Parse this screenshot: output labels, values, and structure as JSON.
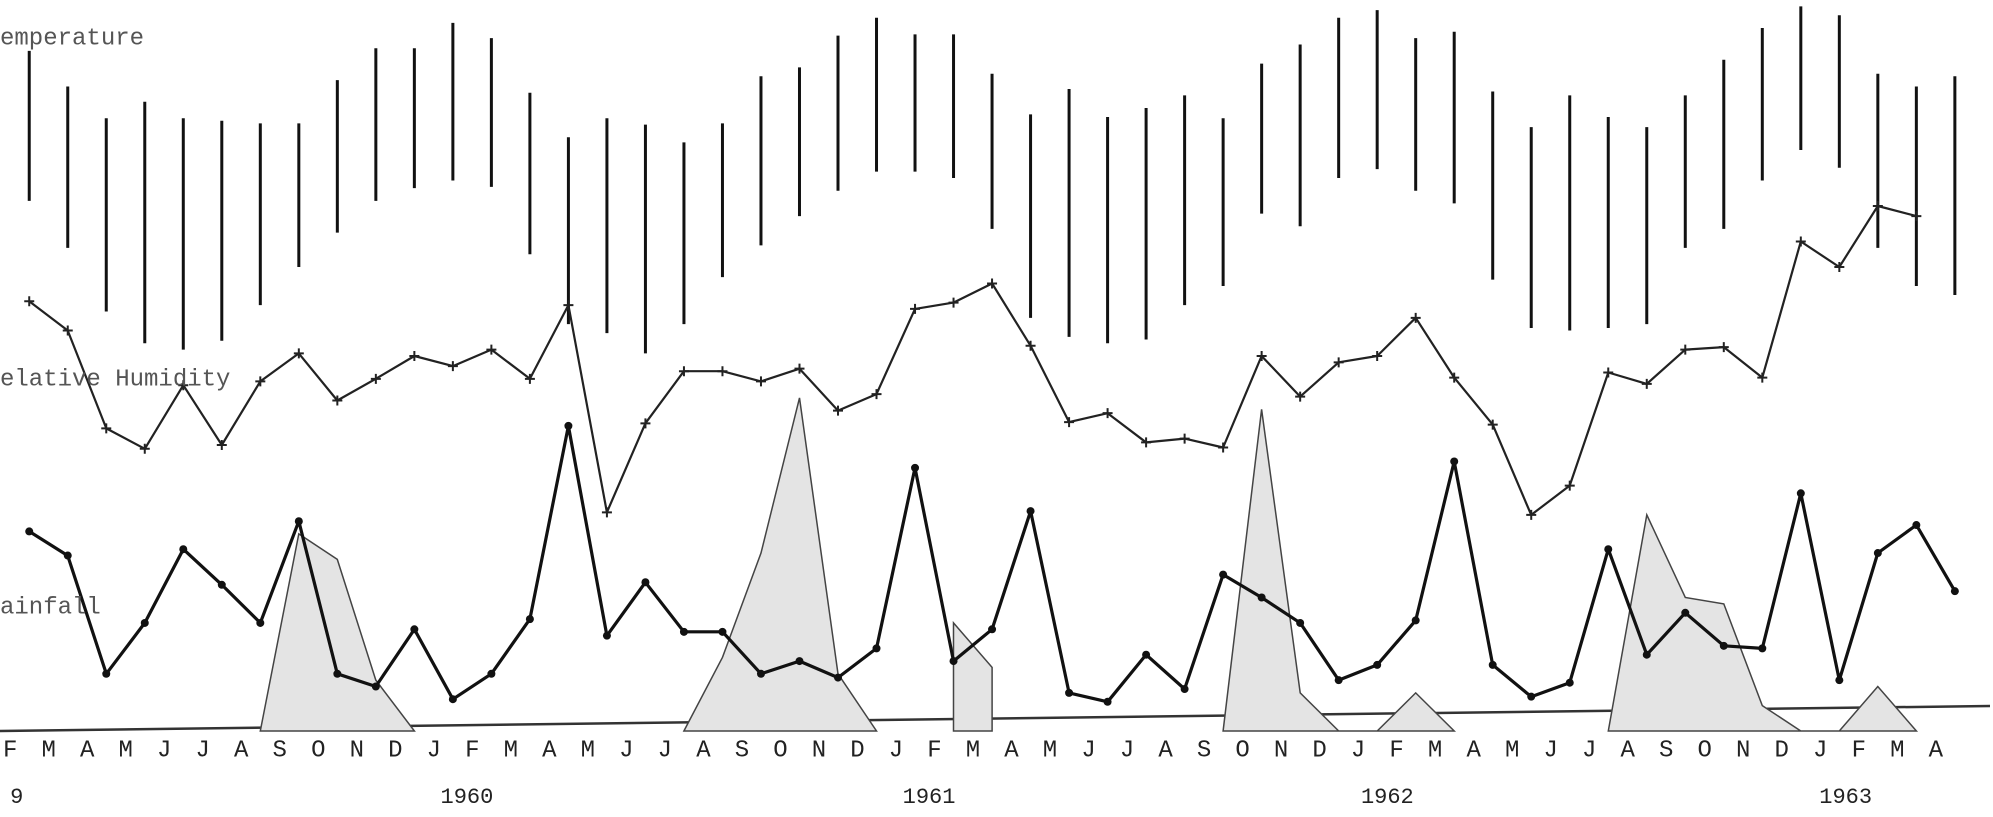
{
  "chart_data": {
    "type": "climate",
    "categories": [
      "F",
      "M",
      "A",
      "M",
      "J",
      "J",
      "A",
      "S",
      "O",
      "N",
      "D",
      "J",
      "F",
      "M",
      "A",
      "M",
      "J",
      "J",
      "A",
      "S",
      "O",
      "N",
      "D",
      "J",
      "F",
      "M",
      "A",
      "M",
      "J",
      "J",
      "A",
      "S",
      "O",
      "N",
      "D",
      "J",
      "F",
      "M",
      "A",
      "M",
      "J",
      "J",
      "A",
      "S",
      "O",
      "N",
      "D",
      "J",
      "F",
      "M",
      "A"
    ],
    "year_labels": [
      "9",
      "1960",
      "1961",
      "1962",
      "1963"
    ],
    "ylim": [
      0,
      575
    ],
    "series": [
      {
        "name": "emperature",
        "type": "range",
        "color": "#111",
        "high": [
          535,
          507,
          482,
          495,
          482,
          480,
          478,
          478,
          512,
          537,
          537,
          557,
          545,
          502,
          467,
          482,
          477,
          463,
          478,
          515,
          522,
          547,
          561,
          548,
          548,
          517,
          485,
          505,
          483,
          490,
          500,
          482,
          525,
          540,
          561,
          567,
          545,
          550,
          503,
          475,
          500,
          483,
          475,
          500,
          528,
          553,
          570,
          563,
          517,
          507,
          515
        ],
        "low": [
          417,
          380,
          330,
          305,
          300,
          307,
          335,
          365,
          392,
          417,
          427,
          433,
          428,
          375,
          320,
          313,
          297,
          320,
          357,
          382,
          405,
          425,
          440,
          440,
          435,
          395,
          325,
          310,
          305,
          308,
          335,
          350,
          407,
          397,
          435,
          442,
          425,
          415,
          355,
          317,
          315,
          317,
          320,
          380,
          395,
          433,
          457,
          443,
          380,
          350,
          343
        ]
      },
      {
        "name": "elative Humidity",
        "type": "line",
        "color": "#222",
        "marker": "plus",
        "values": [
          338,
          315,
          238,
          222,
          272,
          225,
          275,
          297,
          260,
          277,
          295,
          287,
          300,
          277,
          335,
          172,
          242,
          283,
          283,
          275,
          285,
          252,
          265,
          332,
          337,
          352,
          303,
          243,
          250,
          227,
          230,
          223,
          295,
          263,
          290,
          295,
          325,
          278,
          241,
          170,
          193,
          282,
          273,
          300,
          302,
          278,
          385,
          365,
          413,
          405,
          null
        ]
      },
      {
        "name": "ainfall",
        "type": "line",
        "color": "#111",
        "marker": "dot",
        "values": [
          157,
          138,
          45,
          85,
          143,
          115,
          85,
          165,
          45,
          35,
          80,
          25,
          45,
          88,
          240,
          75,
          117,
          78,
          78,
          45,
          55,
          42,
          65,
          207,
          55,
          80,
          173,
          30,
          23,
          60,
          33,
          123,
          105,
          85,
          40,
          52,
          87,
          212,
          52,
          27,
          38,
          143,
          60,
          93,
          67,
          65,
          187,
          40,
          140,
          162,
          110
        ]
      },
      {
        "type": "area",
        "color": "#e4e4e4",
        "values": [
          null,
          null,
          null,
          null,
          null,
          null,
          0,
          155,
          135,
          40,
          0,
          null,
          null,
          null,
          null,
          null,
          null,
          0,
          58,
          140,
          262,
          45,
          0,
          null,
          85,
          50,
          null,
          null,
          null,
          null,
          null,
          0,
          253,
          30,
          0,
          0,
          30,
          0,
          null,
          null,
          null,
          0,
          170,
          105,
          100,
          20,
          0,
          0,
          35,
          0,
          null
        ]
      }
    ]
  }
}
